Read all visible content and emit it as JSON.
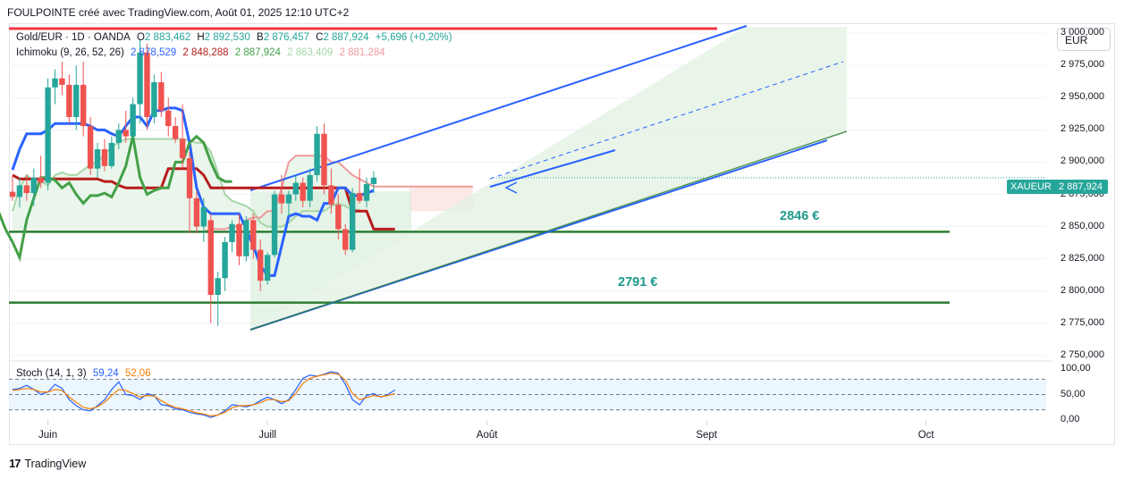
{
  "header": {
    "title": "FOULPOINTE créé avec TradingView.com, Août 01, 2025 12:10 UTC+2"
  },
  "toolbar": {
    "currency": "EUR"
  },
  "legend": {
    "symbol": "Gold/EUR · 1D · OANDA",
    "ohlc": [
      {
        "key": "O",
        "value": "2 883,462"
      },
      {
        "key": "H",
        "value": "2 892,530"
      },
      {
        "key": "B",
        "value": "2 876,457"
      },
      {
        "key": "C",
        "value": "2 887,924"
      }
    ],
    "change": "+5,696 (+0,20%)",
    "ichimoku_label": "Ichimoku (9, 26, 52, 26)",
    "ichimoku_values": [
      "2 878,529",
      "2 848,288",
      "2 887,924",
      "2 863,409",
      "2 881,284"
    ],
    "stoch_label": "Stoch (14, 1, 3)",
    "stoch_values": [
      "59,24",
      "52,06"
    ]
  },
  "price_tag": {
    "symbol": "XAUEUR",
    "value": "2 887,924"
  },
  "annotations": [
    {
      "text": "2846 €",
      "price": 2846
    },
    {
      "text": "2791 €",
      "price": 2791
    }
  ],
  "brand": {
    "name": "TradingView",
    "mark": "17"
  },
  "colors": {
    "up": "#26a69a",
    "down": "#ef5350",
    "kijun": "#b71c1c",
    "tenkan": "#2962ff",
    "chikou": "#43a047",
    "span_a": "#a5d6a7",
    "span_b": "#ef9a9a",
    "trend": "#2962ff",
    "support": "#2e7d32",
    "resistance": "#f23645",
    "stoch_k": "#2962ff",
    "stoch_d": "#f57c00"
  },
  "chart_data": [
    {
      "type": "candlestick",
      "title": "Gold/EUR · 1D · OANDA",
      "ylim": [
        2745,
        3005
      ],
      "yticks": [
        {
          "label": "2 975,000",
          "value": 2975
        },
        {
          "label": "2 950,000",
          "value": 2950
        },
        {
          "label": "2 925,000",
          "value": 2925
        },
        {
          "label": "2 900,000",
          "value": 2900
        },
        {
          "label": "2 875,000",
          "value": 2875
        },
        {
          "label": "2 850,000",
          "value": 2850
        },
        {
          "label": "2 825,000",
          "value": 2825
        },
        {
          "label": "2 800,000",
          "value": 2800
        },
        {
          "label": "2 775,000",
          "value": 2775
        },
        {
          "label": "2 750,000",
          "value": 2750
        },
        {
          "label": "3 000,000",
          "value": 3000
        }
      ],
      "xticks": [
        {
          "label": "Juin",
          "bar": 5
        },
        {
          "label": "Juill",
          "bar": 36
        },
        {
          "label": "Août",
          "bar": 67
        },
        {
          "label": "Sept",
          "bar": 98
        },
        {
          "label": "Oct",
          "bar": 129
        }
      ],
      "candles": [
        {
          "o": 2877,
          "h": 2890,
          "l": 2870,
          "c": 2873
        },
        {
          "o": 2873,
          "h": 2888,
          "l": 2865,
          "c": 2882
        },
        {
          "o": 2882,
          "h": 2890,
          "l": 2870,
          "c": 2876
        },
        {
          "o": 2876,
          "h": 2895,
          "l": 2866,
          "c": 2888
        },
        {
          "o": 2888,
          "h": 2905,
          "l": 2880,
          "c": 2884
        },
        {
          "o": 2884,
          "h": 2965,
          "l": 2878,
          "c": 2958
        },
        {
          "o": 2958,
          "h": 2972,
          "l": 2945,
          "c": 2965
        },
        {
          "o": 2965,
          "h": 2978,
          "l": 2952,
          "c": 2960
        },
        {
          "o": 2960,
          "h": 2968,
          "l": 2930,
          "c": 2935
        },
        {
          "o": 2935,
          "h": 2975,
          "l": 2925,
          "c": 2960
        },
        {
          "o": 2960,
          "h": 2978,
          "l": 2920,
          "c": 2928
        },
        {
          "o": 2928,
          "h": 2935,
          "l": 2890,
          "c": 2895
        },
        {
          "o": 2895,
          "h": 2915,
          "l": 2888,
          "c": 2910
        },
        {
          "o": 2910,
          "h": 2918,
          "l": 2893,
          "c": 2897
        },
        {
          "o": 2897,
          "h": 2920,
          "l": 2895,
          "c": 2915
        },
        {
          "o": 2915,
          "h": 2930,
          "l": 2910,
          "c": 2925
        },
        {
          "o": 2925,
          "h": 2940,
          "l": 2915,
          "c": 2920
        },
        {
          "o": 2920,
          "h": 2950,
          "l": 2918,
          "c": 2945
        },
        {
          "o": 2945,
          "h": 2995,
          "l": 2930,
          "c": 2985
        },
        {
          "o": 2985,
          "h": 2992,
          "l": 2925,
          "c": 2935
        },
        {
          "o": 2935,
          "h": 2968,
          "l": 2930,
          "c": 2962
        },
        {
          "o": 2962,
          "h": 2970,
          "l": 2935,
          "c": 2940
        },
        {
          "o": 2940,
          "h": 2950,
          "l": 2920,
          "c": 2928
        },
        {
          "o": 2928,
          "h": 2935,
          "l": 2915,
          "c": 2918
        },
        {
          "o": 2918,
          "h": 2945,
          "l": 2895,
          "c": 2903
        },
        {
          "o": 2903,
          "h": 2908,
          "l": 2845,
          "c": 2872
        },
        {
          "o": 2872,
          "h": 2878,
          "l": 2845,
          "c": 2850
        },
        {
          "o": 2850,
          "h": 2872,
          "l": 2838,
          "c": 2865
        },
        {
          "o": 2855,
          "h": 2860,
          "l": 2775,
          "c": 2797
        },
        {
          "o": 2797,
          "h": 2815,
          "l": 2773,
          "c": 2810
        },
        {
          "o": 2810,
          "h": 2842,
          "l": 2800,
          "c": 2838
        },
        {
          "o": 2838,
          "h": 2855,
          "l": 2830,
          "c": 2852
        },
        {
          "o": 2852,
          "h": 2860,
          "l": 2820,
          "c": 2827
        },
        {
          "o": 2827,
          "h": 2858,
          "l": 2823,
          "c": 2855
        },
        {
          "o": 2855,
          "h": 2860,
          "l": 2825,
          "c": 2832
        },
        {
          "o": 2832,
          "h": 2840,
          "l": 2800,
          "c": 2808
        },
        {
          "o": 2808,
          "h": 2830,
          "l": 2805,
          "c": 2828
        },
        {
          "o": 2828,
          "h": 2878,
          "l": 2826,
          "c": 2875
        },
        {
          "o": 2875,
          "h": 2890,
          "l": 2860,
          "c": 2868
        },
        {
          "o": 2868,
          "h": 2878,
          "l": 2858,
          "c": 2875
        },
        {
          "o": 2875,
          "h": 2890,
          "l": 2870,
          "c": 2884
        },
        {
          "o": 2884,
          "h": 2888,
          "l": 2865,
          "c": 2870
        },
        {
          "o": 2870,
          "h": 2895,
          "l": 2865,
          "c": 2890
        },
        {
          "o": 2890,
          "h": 2928,
          "l": 2885,
          "c": 2922
        },
        {
          "o": 2922,
          "h": 2930,
          "l": 2875,
          "c": 2882
        },
        {
          "o": 2882,
          "h": 2895,
          "l": 2860,
          "c": 2867
        },
        {
          "o": 2867,
          "h": 2875,
          "l": 2840,
          "c": 2848
        },
        {
          "o": 2848,
          "h": 2852,
          "l": 2828,
          "c": 2832
        },
        {
          "o": 2832,
          "h": 2880,
          "l": 2830,
          "c": 2876
        },
        {
          "o": 2876,
          "h": 2895,
          "l": 2868,
          "c": 2870
        },
        {
          "o": 2870,
          "h": 2888,
          "l": 2865,
          "c": 2883
        },
        {
          "o": 2883,
          "h": 2893,
          "l": 2876,
          "c": 2888
        }
      ],
      "ichimoku": {
        "tenkan": [
          2894,
          2910,
          2922,
          2922,
          2922,
          2925,
          2930,
          2930,
          2930,
          2930,
          2930,
          2928,
          2925,
          2925,
          2922,
          2920,
          2928,
          2935,
          2935,
          2928,
          2940,
          2940,
          2942,
          2942,
          2940,
          2915,
          2880,
          2865,
          2860,
          2860,
          2860,
          2860,
          2860,
          2848,
          2835,
          2820,
          2812,
          2812,
          2835,
          2858,
          2860,
          2858,
          2858,
          2855,
          2868,
          2868,
          2880,
          2880,
          2874,
          2874,
          2876,
          2878
        ],
        "kijun": [
          2890,
          2887,
          2887,
          2887,
          2887,
          2887,
          2887,
          2887,
          2887,
          2887,
          2887,
          2887,
          2887,
          2885,
          2885,
          2882,
          2880,
          2880,
          2880,
          2880,
          2880,
          2880,
          2895,
          2895,
          2895,
          2895,
          2895,
          2890,
          2880,
          2880,
          2880,
          2880,
          2880,
          2880,
          2880,
          2880,
          2880,
          2880,
          2880,
          2880,
          2880,
          2880,
          2880,
          2880,
          2880,
          2880,
          2880,
          2880,
          2862,
          2862,
          2862,
          2848,
          2848,
          2848,
          2848
        ],
        "span_a": [
          2862,
          2880,
          2890,
          2885,
          2885,
          2882,
          2890,
          2892,
          2890,
          2890,
          2894,
          2898,
          2900,
          2906,
          2912,
          2915,
          2918,
          2918,
          2918,
          2918,
          2918,
          2918,
          2918,
          2918,
          2918,
          2917,
          2915,
          2915,
          2908,
          2892,
          2875,
          2870,
          2868,
          2866,
          2862,
          2853,
          2850,
          2850,
          2850,
          2853,
          2858,
          2862,
          2862,
          2862,
          2862,
          2866,
          2868,
          2866,
          2863,
          2863
        ],
        "span_b": [
          2846,
          2846,
          2846,
          2846,
          2846,
          2846,
          2846,
          2846,
          2846,
          2846,
          2846,
          2846,
          2846,
          2846,
          2846,
          2846,
          2846,
          2846,
          2846,
          2846,
          2846,
          2846,
          2846,
          2846,
          2846,
          2846,
          2846,
          2846,
          2848,
          2848,
          2848,
          2850,
          2850,
          2855,
          2857,
          2857,
          2862,
          2862,
          2880,
          2900,
          2905,
          2905,
          2905,
          2905,
          2905,
          2900,
          2900,
          2895,
          2890,
          2887,
          2884,
          2881,
          2881,
          2881,
          2881,
          2881,
          2881,
          2881,
          2881,
          2881,
          2881,
          2881,
          2881,
          2881,
          2881,
          2881
        ],
        "chikou": [
          2838,
          2848,
          2830,
          2840,
          2838,
          2848,
          2860,
          2850,
          2830,
          2838,
          2868,
          2877,
          2880,
          2870,
          2890,
          2905,
          2910,
          2900,
          2890,
          2895,
          2878,
          2860,
          2870,
          2890,
          2862,
          2848,
          2838,
          2826,
          2855,
          2872,
          2888,
          2888,
          2886,
          2880,
          2884,
          2875,
          2868,
          2874,
          2874,
          2876,
          2873,
          2884,
          2897,
          2920,
          2888,
          2875,
          2878,
          2880,
          2880,
          2900,
          2900,
          2915,
          2920,
          2915,
          2900,
          2888,
          2885,
          2885
        ]
      },
      "levels": [
        {
          "price": 2846,
          "label": "2846 €"
        },
        {
          "price": 2791,
          "label": "2791 €"
        }
      ],
      "current_price": 2887.924
    },
    {
      "type": "line",
      "title": "Stoch (14, 1, 3)",
      "ylim": [
        0,
        100
      ],
      "yticks": [
        {
          "label": "100,00",
          "value": 100
        },
        {
          "label": "50,00",
          "value": 50
        },
        {
          "label": "0,00",
          "value": 0
        }
      ],
      "overbought": 80,
      "oversold": 20,
      "series": [
        {
          "name": "%K",
          "values": [
            60,
            62,
            68,
            60,
            50,
            55,
            70,
            62,
            40,
            28,
            20,
            18,
            28,
            40,
            60,
            75,
            50,
            48,
            40,
            52,
            48,
            30,
            28,
            22,
            20,
            15,
            12,
            10,
            5,
            10,
            18,
            30,
            28,
            26,
            30,
            38,
            45,
            40,
            32,
            40,
            60,
            82,
            88,
            86,
            90,
            95,
            92,
            70,
            40,
            30,
            48,
            52,
            45,
            50,
            59
          ]
        },
        {
          "name": "%D",
          "values": [
            58,
            60,
            62,
            60,
            55,
            55,
            60,
            58,
            45,
            35,
            25,
            22,
            26,
            35,
            48,
            60,
            58,
            52,
            45,
            48,
            47,
            38,
            30,
            25,
            22,
            18,
            14,
            12,
            8,
            10,
            15,
            24,
            28,
            28,
            30,
            34,
            40,
            40,
            36,
            38,
            52,
            72,
            82,
            86,
            89,
            92,
            90,
            78,
            52,
            40,
            44,
            48,
            46,
            48,
            52
          ]
        }
      ]
    }
  ]
}
